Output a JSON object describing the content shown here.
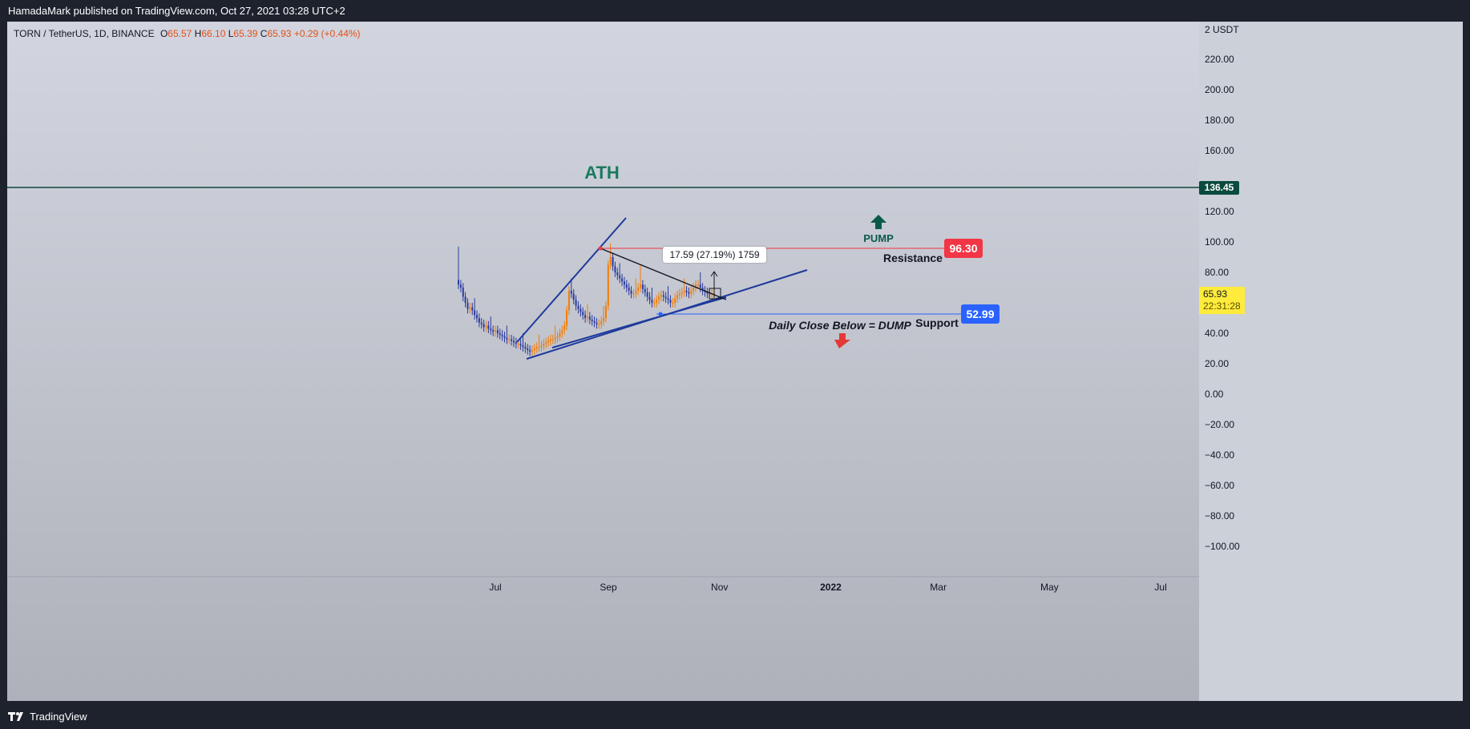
{
  "header": {
    "published": "HamadaMark published on TradingView.com, Oct 27, 2021 03:28 UTC+2"
  },
  "footer": {
    "brand": "TradingView"
  },
  "legend": {
    "symbol": "TORN / TetherUS, 1D, BINANCE",
    "o_label": "O",
    "o_value": "65.57",
    "h_label": "H",
    "h_value": "66.10",
    "l_label": "L",
    "l_value": "65.39",
    "c_label": "C",
    "c_value": "65.93",
    "change": "+0.29 (+0.44%)"
  },
  "price_tags": {
    "ath_value": "136.45",
    "resistance_value": "96.30",
    "support_value": "52.99",
    "current_price": "65.93",
    "countdown": "22:31:28"
  },
  "annotations": {
    "ath": "ATH",
    "pump": "PUMP",
    "resistance": "Resistance",
    "support": "Support",
    "dump": "Daily Close Below = DUMP",
    "measure": "17.59 (27.19%) 1759"
  },
  "colors": {
    "ath_line": "#0b4a3e",
    "resistance": "#f23645",
    "support": "#2962ff",
    "trend": "#1e3a9c",
    "candle_up": "#f57c00",
    "candle_down": "#2a3a9e",
    "pump_arrow": "#0b5a48",
    "dump_arrow": "#e53935",
    "current_tag": "#ffeb3b"
  },
  "chart_data": {
    "type": "candlestick",
    "symbol": "TORN / TetherUS",
    "interval": "1D",
    "exchange": "BINANCE",
    "y_axis": {
      "unit_label": "USDT",
      "ticks": [
        220,
        200,
        180,
        160,
        120,
        100,
        80,
        40,
        20,
        0,
        -20,
        -40,
        -60,
        -80,
        -100
      ],
      "tick_labels": [
        "220.00",
        "200.00",
        "180.00",
        "160.00",
        "120.00",
        "100.00",
        "80.00",
        "40.00",
        "20.00",
        "0.00",
        "−20.00",
        "−40.00",
        "−60.00",
        "−80.00",
        "−100.00"
      ],
      "top_label": "2 USDT"
    },
    "x_axis": {
      "labels": [
        "Jul",
        "Sep",
        "Nov",
        "2022",
        "Mar",
        "May",
        "Jul"
      ],
      "dates": [
        "2021-07-01",
        "2021-09-01",
        "2021-11-01",
        "2022-01-01",
        "2022-03-01",
        "2022-05-01",
        "2022-07-01"
      ]
    },
    "closes": [
      72,
      70,
      64,
      60,
      56,
      57,
      55,
      52,
      50,
      47,
      46,
      44,
      45,
      43,
      42,
      41,
      42,
      40,
      39,
      38,
      37,
      36,
      36,
      35,
      34,
      33,
      33,
      32,
      31,
      30,
      29,
      28,
      29,
      30,
      31,
      31,
      32,
      33,
      34,
      35,
      36,
      36,
      37,
      38,
      40,
      42,
      45,
      55,
      68,
      66,
      62,
      58,
      56,
      54,
      52,
      50,
      51,
      49,
      48,
      47,
      46,
      46,
      48,
      50,
      58,
      85,
      90,
      84,
      80,
      78,
      76,
      74,
      72,
      70,
      68,
      66,
      66,
      68,
      70,
      72,
      69,
      67,
      64,
      62,
      60,
      60,
      62,
      64,
      65,
      64,
      63,
      62,
      60,
      60,
      63,
      65,
      66,
      67,
      68,
      67,
      66,
      68,
      70,
      72,
      72,
      70,
      68,
      67,
      66,
      66,
      66,
      66
    ],
    "levels": {
      "ath": 136.45,
      "resistance": 96.3,
      "support": 52.99,
      "current": 65.93
    }
  }
}
